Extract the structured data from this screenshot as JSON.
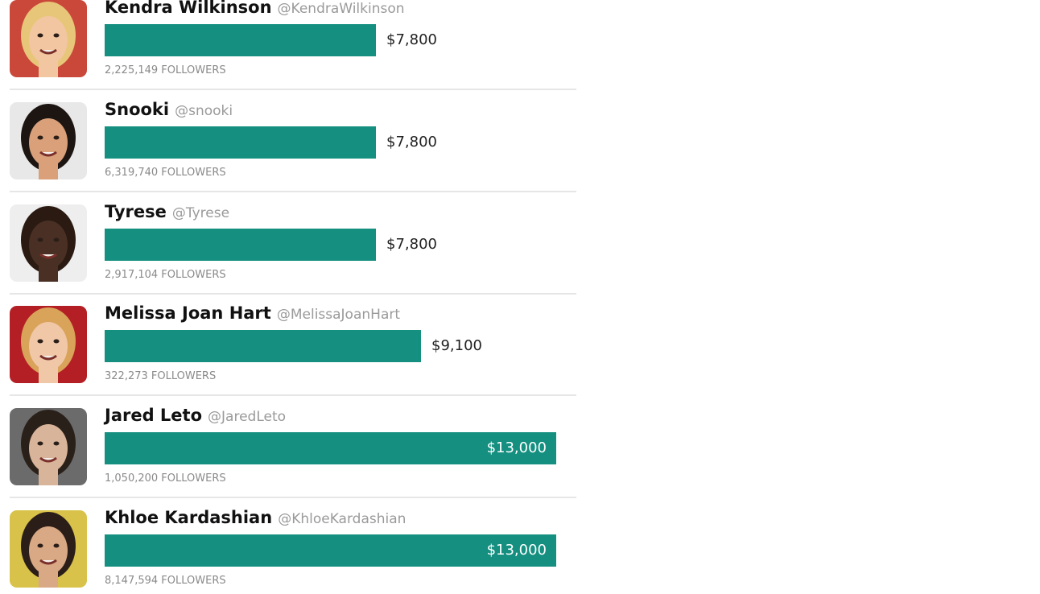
{
  "chart_data": {
    "type": "bar",
    "orientation": "horizontal",
    "value_format": "currency-usd",
    "xlim": [
      0,
      13000
    ],
    "rows": [
      {
        "name": "Kendra Wilkinson",
        "handle": "@KendraWilkinson",
        "value": 7800,
        "value_label": "$7,800",
        "followers": "2,225,149 FOLLOWERS",
        "avatar": {
          "bg": "#c9483a",
          "skin": "#f1c6a0",
          "hair": "#e7c679"
        }
      },
      {
        "name": "Snooki",
        "handle": "@snooki",
        "value": 7800,
        "value_label": "$7,800",
        "followers": "6,319,740 FOLLOWERS",
        "avatar": {
          "bg": "#e8e8e8",
          "skin": "#d9a07a",
          "hair": "#1c1512"
        }
      },
      {
        "name": "Tyrese",
        "handle": "@Tyrese",
        "value": 7800,
        "value_label": "$7,800",
        "followers": "2,917,104 FOLLOWERS",
        "avatar": {
          "bg": "#eeeeee",
          "skin": "#4a3024",
          "hair": "#2a1a12"
        }
      },
      {
        "name": "Melissa Joan Hart",
        "handle": "@MelissaJoanHart",
        "value": 9100,
        "value_label": "$9,100",
        "followers": "322,273 FOLLOWERS",
        "avatar": {
          "bg": "#b31f24",
          "skin": "#f0c8a8",
          "hair": "#d9a35a"
        }
      },
      {
        "name": "Jared Leto",
        "handle": "@JaredLeto",
        "value": 13000,
        "value_label": "$13,000",
        "followers": "1,050,200 FOLLOWERS",
        "avatar": {
          "bg": "#6b6b6b",
          "skin": "#d8b49a",
          "hair": "#2a201a"
        }
      },
      {
        "name": "Khloe Kardashian",
        "handle": "@KhloeKardashian",
        "value": 13000,
        "value_label": "$13,000",
        "followers": "8,147,594 FOLLOWERS",
        "avatar": {
          "bg": "#d8c24a",
          "skin": "#d9a884",
          "hair": "#2b1e18"
        }
      }
    ]
  },
  "colors": {
    "bar": "#148f80",
    "name": "#111111",
    "handle": "#9a9a9a",
    "followers": "#8a8a8a",
    "divider": "#e6e6e6"
  },
  "icons": {
    "avatar": "person-photo-icon"
  }
}
